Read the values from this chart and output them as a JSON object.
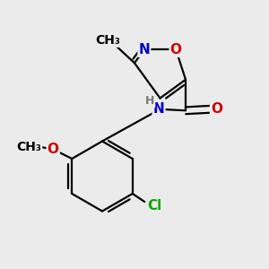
{
  "background_color": "#ebebeb",
  "atom_colors": {
    "C": "#000000",
    "N": "#0000cc",
    "O": "#cc0000",
    "Cl": "#00aa00",
    "H": "#777777"
  },
  "bond_color": "#000000",
  "bond_width": 1.6,
  "dbo": 0.012,
  "font_size": 11
}
